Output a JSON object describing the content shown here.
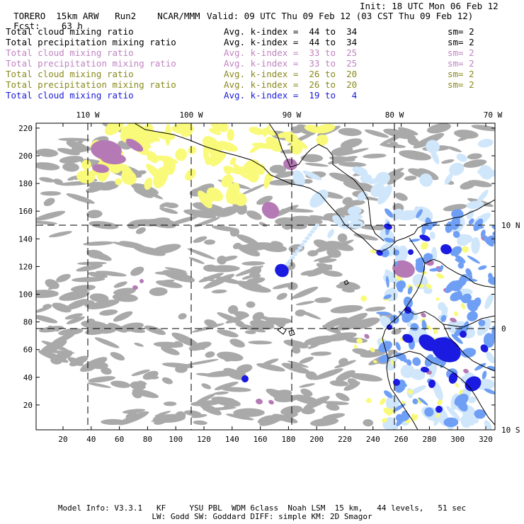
{
  "header": {
    "model": "TORERO",
    "resolution": "15km ARW",
    "run": "Run2",
    "org": "NCAR/MMM",
    "init": "Init: 18 UTC Mon 06 Feb 12",
    "fcst_label": "Fcst:",
    "fcst_value": "63 h",
    "valid": "Valid: 09 UTC Thu 09 Feb 12 (03 CST Thu 09 Feb 12)"
  },
  "legend": [
    {
      "label": "Total cloud mixing ratio",
      "kindex": "Avg. k-index =  44 to  34",
      "sm": "sm= 2",
      "color": "#000000"
    },
    {
      "label": "Total precipitation mixing ratio",
      "kindex": "Avg. k-index =  44 to  34",
      "sm": "sm= 2",
      "color": "#000000"
    },
    {
      "label": "Total cloud mixing ratio",
      "kindex": "Avg. k-index =  33 to  25",
      "sm": "sm= 2",
      "color": "#c084c0"
    },
    {
      "label": "Total precipitation mixing ratio",
      "kindex": "Avg. k-index =  33 to  25",
      "sm": "sm= 2",
      "color": "#c084c0"
    },
    {
      "label": "Total cloud mixing ratio",
      "kindex": "Avg. k-index =  26 to  20",
      "sm": "sm= 2",
      "color": "#8a8a1e"
    },
    {
      "label": "Total precipitation mixing ratio",
      "kindex": "Avg. k-index =  26 to  20",
      "sm": "sm= 2",
      "color": "#8a8a1e"
    },
    {
      "label": "Total cloud mixing ratio",
      "kindex": "Avg. k-index =  19 to   4",
      "sm": "",
      "color": "#1a1ad8"
    }
  ],
  "map": {
    "longitude_labels": [
      "110 W",
      "100 W",
      "90 W",
      "80 W",
      "70 W"
    ],
    "latitude_labels": [
      "10 N",
      "0",
      "10 S"
    ],
    "x_ticks": [
      "20",
      "40",
      "60",
      "80",
      "100",
      "120",
      "140",
      "160",
      "180",
      "200",
      "220",
      "240",
      "260",
      "280",
      "300",
      "320"
    ],
    "y_ticks": [
      "20",
      "40",
      "60",
      "80",
      "100",
      "120",
      "140",
      "160",
      "180",
      "200",
      "220"
    ],
    "colors": {
      "cloud_gray": "#a9a9a9",
      "purple": "#b57ab5",
      "yellow": "#fafa7a",
      "light_blue": "#cfe6fb",
      "mid_blue": "#6f9ff5",
      "deep_blue": "#1a1ae0"
    }
  },
  "footer": {
    "line1": "Model Info: V3.3.1   KF     YSU PBL  WDM 6class  Noah LSM  15 km,   44 levels,   51 sec",
    "line2": "LW: Godd SW: Goddard DIFF: simple KM: 2D Smagor"
  }
}
